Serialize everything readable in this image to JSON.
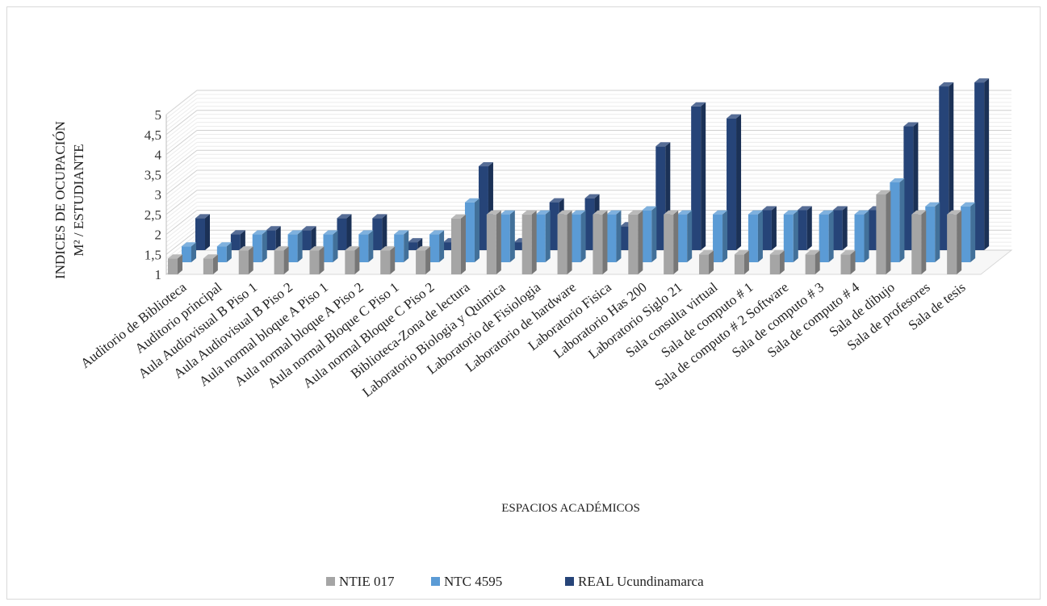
{
  "chart_data": {
    "type": "bar",
    "subtype": "3d-clustered-column",
    "xlabel": "ESPACIOS ACADÉMICOS",
    "ylabel_lines": [
      "INDICES DE OCUPACIÓN",
      "M² / ESTUDIANTE"
    ],
    "ylim": [
      1,
      5
    ],
    "yticks": [
      "1",
      "1,5",
      "2",
      "2,5",
      "3",
      "3,5",
      "4",
      "4,5",
      "5"
    ],
    "ytick_values": [
      1,
      1.5,
      2,
      2.5,
      3,
      3.5,
      4,
      4.5,
      5
    ],
    "grid": true,
    "legend_position": "bottom",
    "categories": [
      "Auditorio de Biblioteca",
      "Auditorio principal",
      "Aula Audiovisual B Piso 1",
      "Aula Audiovisual B Piso 2",
      "Aula normal bloque A Piso 1",
      "Aula normal bloque A Piso 2",
      "Aula normal Bloque C Piso 1",
      "Aula normal Bloque C Piso 2",
      "Biblioteca-Zona de lectura",
      "Laboratorio Biologia y Quimica",
      "Laboratorio de Fisiologia",
      "Laboratorio de hardware",
      "Laboratorio Fisica",
      "Laboratorio Has 200",
      "Laboratorio Siglo 21",
      "Sala consulta virtual",
      "Sala de computo # 1",
      "Sala de computo # 2 Software",
      "Sala de computo # 3",
      "Sala de computo # 4",
      "Sala de dibujo",
      "Sala de profesores",
      "Sala de tesis"
    ],
    "series": [
      {
        "name": "NTIE 017",
        "color": "#a5a5a5",
        "values": [
          1.4,
          1.4,
          1.6,
          1.6,
          1.6,
          1.6,
          1.6,
          1.6,
          2.4,
          2.5,
          2.5,
          2.5,
          2.5,
          2.5,
          2.5,
          1.5,
          1.5,
          1.5,
          1.5,
          1.5,
          3.0,
          2.5,
          2.5
        ]
      },
      {
        "name": "NTC 4595",
        "color": "#5b9bd5",
        "values": [
          1.4,
          1.4,
          1.7,
          1.7,
          1.7,
          1.7,
          1.7,
          1.7,
          2.5,
          2.2,
          2.2,
          2.2,
          2.2,
          2.3,
          2.2,
          2.2,
          2.2,
          2.2,
          2.2,
          2.2,
          3.0,
          2.4,
          2.4
        ]
      },
      {
        "name": "REAL Ucundinamarca",
        "color": "#264478",
        "values": [
          1.8,
          1.4,
          1.5,
          1.5,
          1.8,
          1.8,
          1.2,
          1.2,
          3.1,
          1.2,
          2.2,
          2.3,
          1.6,
          3.6,
          4.6,
          4.3,
          2.0,
          2.0,
          2.0,
          2.0,
          4.1,
          5.1,
          5.2
        ]
      }
    ]
  }
}
